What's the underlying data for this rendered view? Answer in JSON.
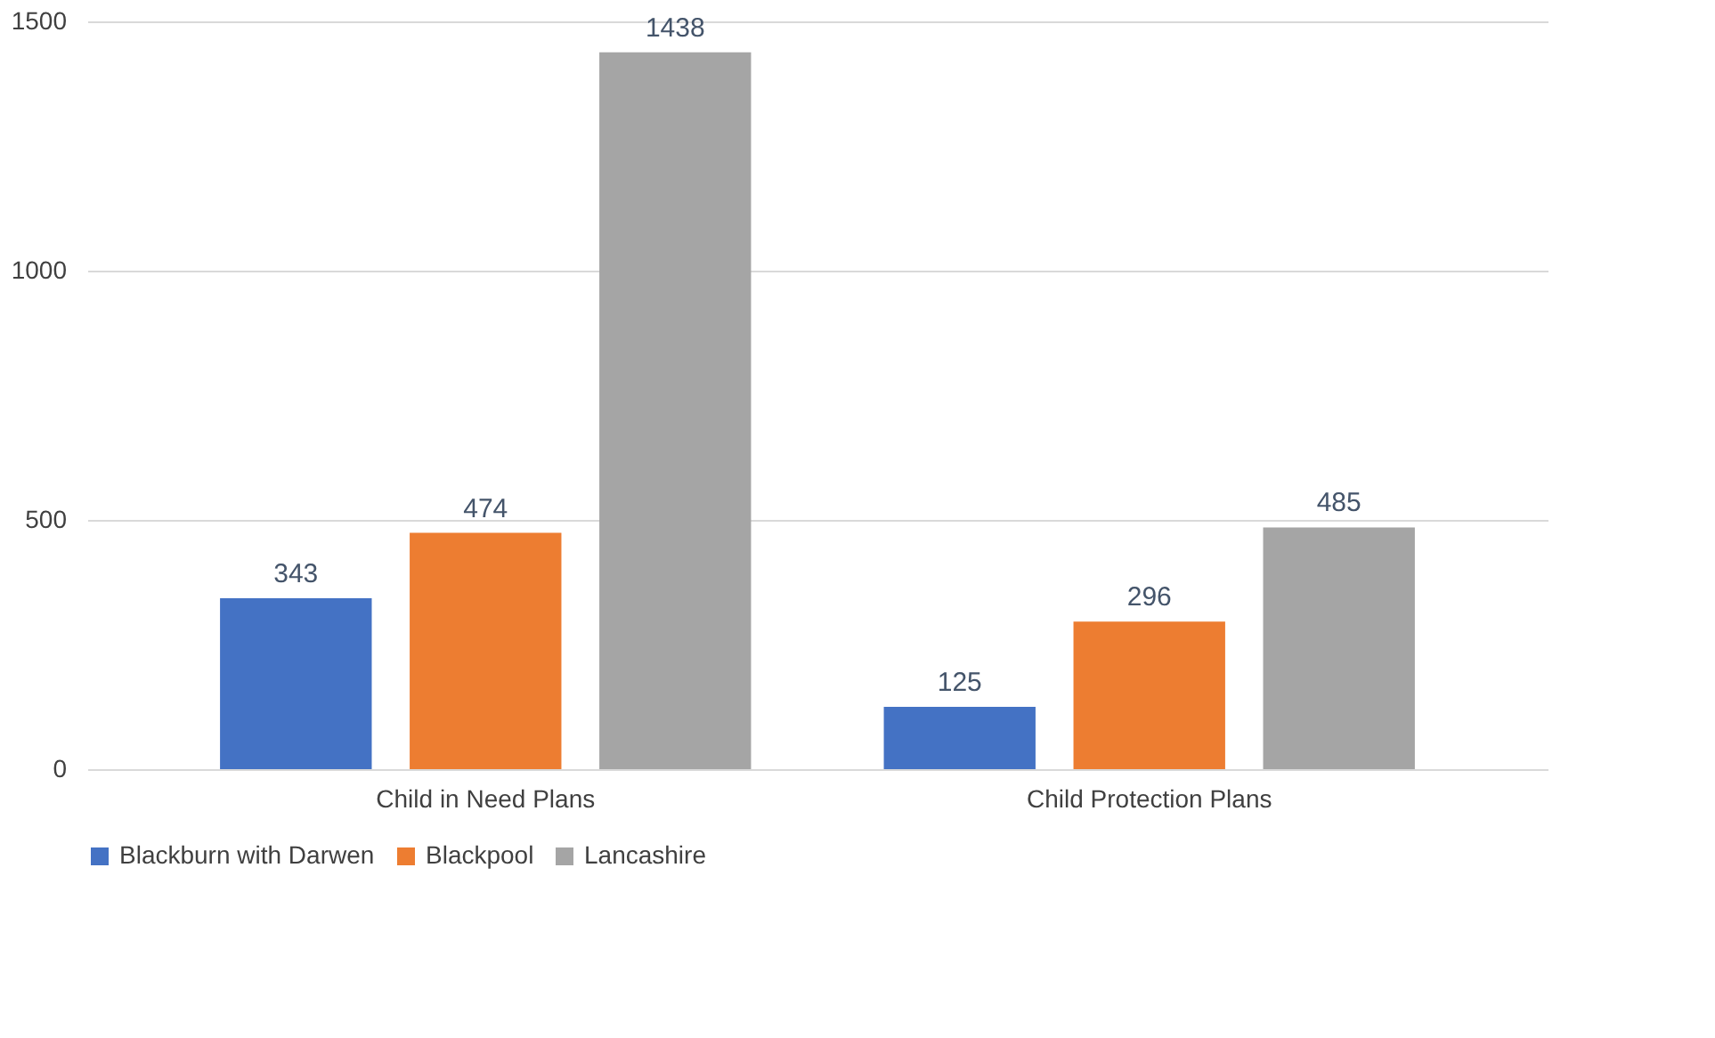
{
  "chart_data": {
    "type": "bar",
    "categories": [
      "Child in Need Plans",
      "Child Protection Plans"
    ],
    "series": [
      {
        "name": "Blackburn with Darwen",
        "color": "#4472c4",
        "values": [
          343,
          125
        ]
      },
      {
        "name": "Blackpool",
        "color": "#ed7d31",
        "values": [
          474,
          296
        ]
      },
      {
        "name": "Lancashire",
        "color": "#a5a5a5",
        "values": [
          1438,
          485
        ]
      }
    ],
    "ylim": [
      0,
      1500
    ],
    "yticks": [
      0,
      500,
      1000,
      1500
    ],
    "grid": "y",
    "legend": "bottom",
    "data_labels": true
  }
}
